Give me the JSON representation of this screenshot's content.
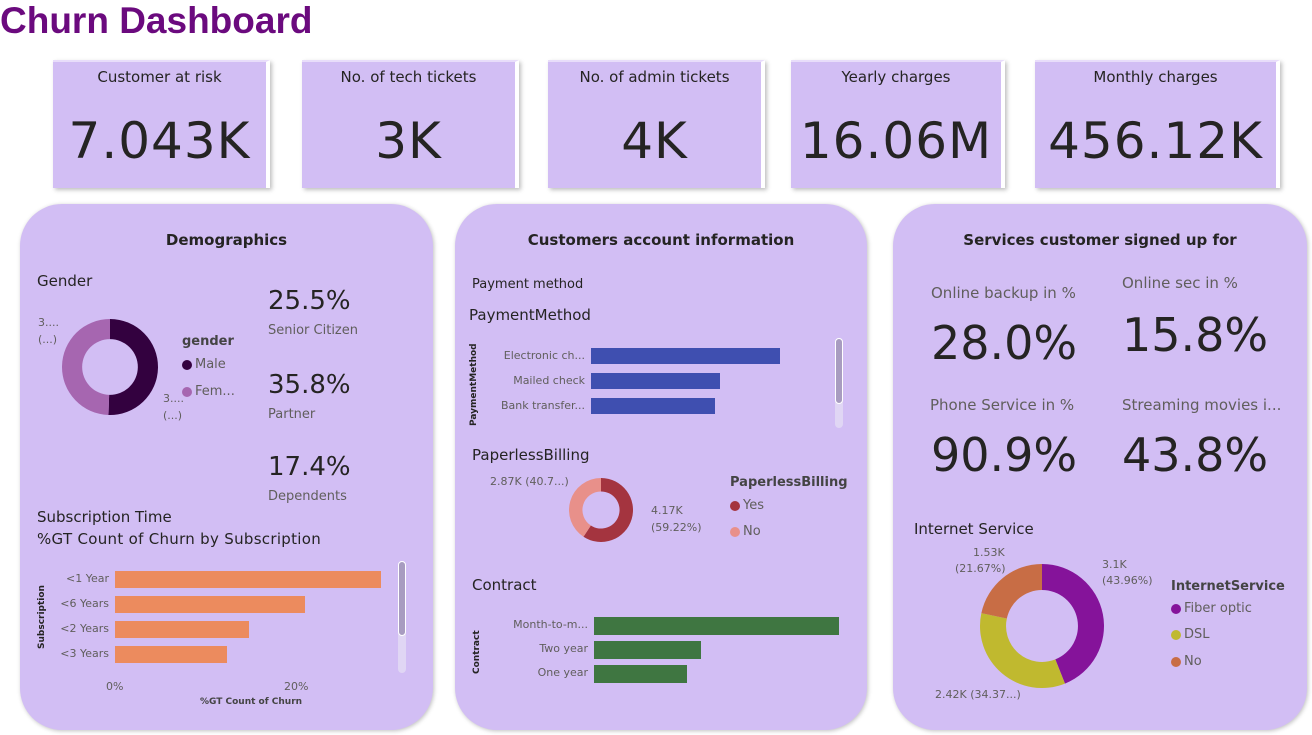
{
  "title": "Churn Dashboard",
  "kpis": [
    {
      "label": "Customer at risk",
      "value": "7.043K"
    },
    {
      "label": "No. of tech tickets",
      "value": "3K"
    },
    {
      "label": "No. of admin tickets",
      "value": "4K"
    },
    {
      "label": "Yearly charges",
      "value": "16.06M"
    },
    {
      "label": "Monthly charges",
      "value": "456.12K"
    }
  ],
  "demographics": {
    "title": "Demographics",
    "gender": {
      "title": "Gender",
      "legend_title": "gender",
      "label_female": "3....",
      "label_female_pct": "(...)",
      "label_male": "3....",
      "label_male_pct": "(...)",
      "slices": [
        {
          "name": "Male",
          "display": "Male",
          "value": 50.5,
          "color": "#33013f"
        },
        {
          "name": "Female",
          "display": "Fem...",
          "value": 49.5,
          "color": "#a666b0"
        }
      ]
    },
    "stats": [
      {
        "value": "25.5%",
        "label": "Senior Citizen"
      },
      {
        "value": "35.8%",
        "label": "Partner"
      },
      {
        "value": "17.4%",
        "label": "Dependents"
      }
    ],
    "subscription": {
      "section_title": "Subscription Time",
      "chart_title": "%GT Count of Churn by Subscription",
      "ylabel": "Subscription",
      "xlabel": "%GT Count of Churn",
      "xticks": [
        "0%",
        "20%"
      ],
      "color": "#ec8b5e",
      "categories": [
        "<1 Year",
        "<6 Years",
        "<2 Years",
        "<3 Years"
      ],
      "values": [
        29.4,
        21.0,
        14.8,
        12.4
      ]
    }
  },
  "account": {
    "title": "Customers account information",
    "payment_section": "Payment method",
    "payment": {
      "title": "PaymentMethod",
      "ylabel": "PaymentMethod",
      "color": "#3f4fb0",
      "categories": [
        "Electronic ch...",
        "Mailed check",
        "Bank transfer..."
      ],
      "values": [
        2365,
        1612,
        1544
      ]
    },
    "paperless": {
      "title": "PaperlessBilling",
      "legend_title": "PaperlessBilling",
      "label_no": "2.87K (40.7...)",
      "label_yes_1": "4.17K",
      "label_yes_2": "(59.22%)",
      "slices": [
        {
          "name": "Yes",
          "value": 59.22,
          "color": "#a4343f"
        },
        {
          "name": "No",
          "value": 40.78,
          "color": "#e8908a"
        }
      ]
    },
    "contract": {
      "title": "Contract",
      "ylabel": "Contract",
      "color": "#3f7641",
      "categories": [
        "Month-to-m...",
        "Two year",
        "One year"
      ],
      "values": [
        3875,
        1695,
        1473
      ]
    }
  },
  "services": {
    "title": "Services customer signed up for",
    "kpis": [
      {
        "label": "Online backup in %",
        "value": "28.0%"
      },
      {
        "label": "Online sec in %",
        "value": "15.8%"
      },
      {
        "label": "Phone Service in %",
        "value": "90.9%"
      },
      {
        "label": "Streaming movies i...",
        "value": "43.8%"
      }
    ],
    "internet": {
      "title": "Internet Service",
      "legend_title": "InternetService",
      "label_fiber_1": "3.1K",
      "label_fiber_2": "(43.96%)",
      "label_no_1": "1.53K",
      "label_no_2": "(21.67%)",
      "label_dsl": "2.42K (34.37...)",
      "slices": [
        {
          "name": "Fiber optic",
          "value": 43.96,
          "color": "#85139a"
        },
        {
          "name": "DSL",
          "value": 34.37,
          "color": "#c0b92f"
        },
        {
          "name": "No",
          "value": 21.67,
          "color": "#c86d45"
        }
      ]
    }
  }
}
